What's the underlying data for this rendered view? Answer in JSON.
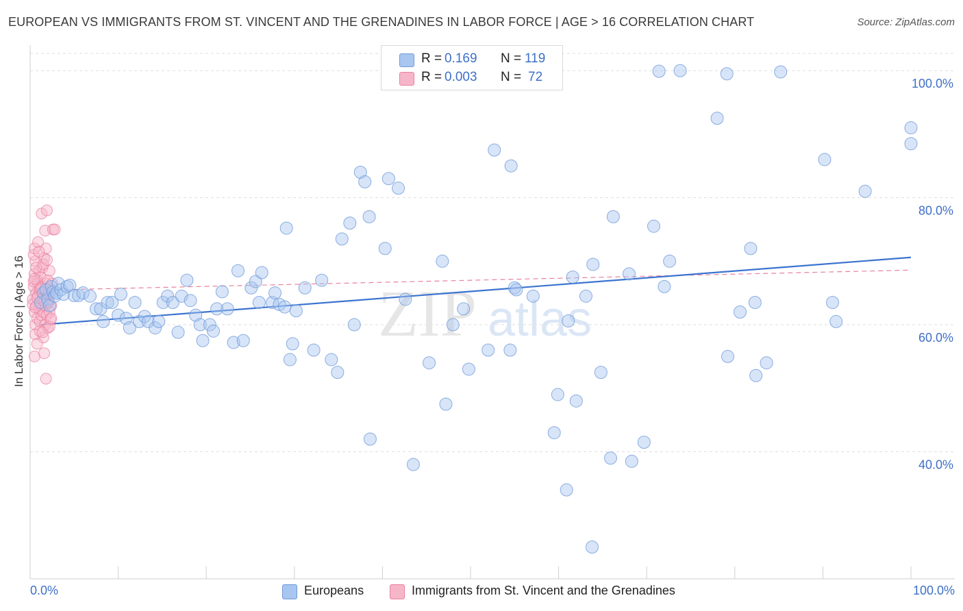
{
  "header": {
    "title": "EUROPEAN VS IMMIGRANTS FROM ST. VINCENT AND THE GRENADINES IN LABOR FORCE | AGE > 16 CORRELATION CHART",
    "source": "Source: ZipAtlas.com"
  },
  "legend_top": {
    "rows": [
      {
        "r_label": "R =",
        "r_value": "0.169",
        "n_label": "N =",
        "n_value": "119"
      },
      {
        "r_label": "R =",
        "r_value": "0.003",
        "n_label": "N =",
        "n_value": "72"
      }
    ]
  },
  "legend_bottom": {
    "items": [
      {
        "label": "Europeans"
      },
      {
        "label": "Immigrants from St. Vincent and the Grenadines"
      }
    ]
  },
  "watermark": {
    "zip": "ZIP",
    "atlas": "atlas"
  },
  "colors": {
    "blue_fill": "#a9c6f0",
    "blue_stroke": "#6f9ad9",
    "blue_line": "#3b73cf",
    "pink_fill": "#f6b6c9",
    "pink_stroke": "#e9809f",
    "pink_line": "#e8809c",
    "tick_text": "#3d6fc7",
    "grid": "#dddddd"
  },
  "chart_data": {
    "type": "scatter",
    "title": "EUROPEAN VS IMMIGRANTS FROM ST. VINCENT AND THE GRENADINES IN LABOR FORCE | AGE > 16 CORRELATION CHART",
    "xlabel": "",
    "ylabel": "In Labor Force | Age > 16",
    "xlim": [
      0,
      100
    ],
    "ylim": [
      20,
      104
    ],
    "x_tick_labels": [
      "0.0%",
      "100.0%"
    ],
    "y_ticks": [
      40,
      60,
      80,
      100
    ],
    "y_tick_labels": [
      "40.0%",
      "60.0%",
      "80.0%",
      "100.0%"
    ],
    "grid": true,
    "legend_position": "top-center",
    "series": [
      {
        "name": "Europeans",
        "R": 0.169,
        "N": 119,
        "trend": {
          "x": [
            1.2,
            100
          ],
          "y": [
            60.0,
            70.6
          ]
        },
        "points": [
          [
            1.2,
            63.5
          ],
          [
            1.5,
            65
          ],
          [
            1.8,
            65.5
          ],
          [
            2,
            64
          ],
          [
            2.2,
            63
          ],
          [
            2.4,
            66
          ],
          [
            2.6,
            65.2
          ],
          [
            2.8,
            64.5
          ],
          [
            3,
            65
          ],
          [
            3.2,
            66.5
          ],
          [
            3.5,
            65.5
          ],
          [
            3.8,
            64.8
          ],
          [
            4.2,
            66
          ],
          [
            4.5,
            66.2
          ],
          [
            5,
            64.6
          ],
          [
            5.5,
            64.6
          ],
          [
            6,
            65
          ],
          [
            6.8,
            64.5
          ],
          [
            7.5,
            62.5
          ],
          [
            8,
            62.5
          ],
          [
            8.3,
            60.5
          ],
          [
            8.8,
            63.5
          ],
          [
            9.3,
            63.5
          ],
          [
            10,
            61.5
          ],
          [
            10.3,
            64.8
          ],
          [
            10.9,
            61
          ],
          [
            11.3,
            59.5
          ],
          [
            11.9,
            63.5
          ],
          [
            12.4,
            60.5
          ],
          [
            13,
            61.3
          ],
          [
            13.4,
            60.5
          ],
          [
            14.2,
            59.5
          ],
          [
            14.6,
            60.5
          ],
          [
            15.1,
            63.5
          ],
          [
            15.6,
            64.5
          ],
          [
            16.2,
            63.5
          ],
          [
            16.8,
            58.8
          ],
          [
            17.2,
            64.5
          ],
          [
            17.8,
            67
          ],
          [
            18.2,
            63.8
          ],
          [
            18.8,
            61.5
          ],
          [
            19.3,
            60
          ],
          [
            19.6,
            57.5
          ],
          [
            20.4,
            60
          ],
          [
            20.8,
            59
          ],
          [
            21.2,
            62.5
          ],
          [
            21.8,
            65.2
          ],
          [
            22.4,
            62.5
          ],
          [
            23.1,
            57.2
          ],
          [
            23.6,
            68.5
          ],
          [
            24.2,
            57.5
          ],
          [
            25.1,
            65.8
          ],
          [
            25.6,
            66.8
          ],
          [
            26,
            63.5
          ],
          [
            26.3,
            68.2
          ],
          [
            27.5,
            63.5
          ],
          [
            27.8,
            65
          ],
          [
            28.3,
            63.2
          ],
          [
            28.9,
            62.8
          ],
          [
            29.1,
            75.2
          ],
          [
            29.5,
            54.5
          ],
          [
            29.8,
            57
          ],
          [
            30.2,
            62.2
          ],
          [
            31.2,
            65.8
          ],
          [
            32.2,
            56
          ],
          [
            33.1,
            67
          ],
          [
            34.2,
            54.5
          ],
          [
            34.9,
            52.5
          ],
          [
            35.4,
            73.5
          ],
          [
            36.3,
            76
          ],
          [
            36.8,
            60
          ],
          [
            37.5,
            84
          ],
          [
            38,
            82.5
          ],
          [
            38.5,
            77
          ],
          [
            38.6,
            42
          ],
          [
            40.3,
            72
          ],
          [
            40.7,
            83
          ],
          [
            41.8,
            81.5
          ],
          [
            42.6,
            64
          ],
          [
            43.5,
            38
          ],
          [
            45.3,
            54
          ],
          [
            47.2,
            47.5
          ],
          [
            46.8,
            70
          ],
          [
            48,
            60
          ],
          [
            49.2,
            62.5
          ],
          [
            49.8,
            53
          ],
          [
            52,
            56
          ],
          [
            52.7,
            87.5
          ],
          [
            54.5,
            56
          ],
          [
            54.6,
            85
          ],
          [
            55,
            65.8
          ],
          [
            55.2,
            65.5
          ],
          [
            57.1,
            64.5
          ],
          [
            59.5,
            43
          ],
          [
            59.9,
            49
          ],
          [
            60.9,
            34
          ],
          [
            61.1,
            60.6
          ],
          [
            61.6,
            67.5
          ],
          [
            62,
            48
          ],
          [
            63.1,
            64.5
          ],
          [
            63.9,
            69.5
          ],
          [
            64.8,
            52.5
          ],
          [
            65.9,
            39
          ],
          [
            66.2,
            77
          ],
          [
            68.3,
            38.5
          ],
          [
            68,
            68
          ],
          [
            69.7,
            41.5
          ],
          [
            70.8,
            75.5
          ],
          [
            72,
            66
          ],
          [
            72.6,
            70
          ],
          [
            73.8,
            100
          ],
          [
            78,
            92.5
          ],
          [
            79.1,
            99.5
          ],
          [
            80.6,
            62
          ],
          [
            81.8,
            72
          ],
          [
            82.3,
            63.5
          ],
          [
            82.4,
            52
          ],
          [
            83.6,
            54
          ],
          [
            91.5,
            60.5
          ],
          [
            90.2,
            86
          ],
          [
            100,
            91
          ],
          [
            94.8,
            81
          ],
          [
            91.1,
            63.5
          ],
          [
            79.2,
            55
          ],
          [
            100,
            88.5
          ],
          [
            71.4,
            99.9
          ],
          [
            85.2,
            99.8
          ],
          [
            63.8,
            25
          ]
        ]
      },
      {
        "name": "Immigrants from St. Vincent and the Grenadines",
        "R": 0.003,
        "N": 72,
        "trend": {
          "x": [
            0.2,
            100
          ],
          "y": [
            65.4,
            68.6
          ]
        },
        "points": [
          [
            0.3,
            64
          ],
          [
            0.4,
            66
          ],
          [
            0.5,
            62
          ],
          [
            0.5,
            68
          ],
          [
            0.6,
            70
          ],
          [
            0.6,
            60
          ],
          [
            0.7,
            65
          ],
          [
            0.7,
            63
          ],
          [
            0.8,
            67
          ],
          [
            0.8,
            61
          ],
          [
            0.9,
            64.5
          ],
          [
            0.9,
            66.5
          ],
          [
            1,
            62.5
          ],
          [
            1,
            68.5
          ],
          [
            1.1,
            60.5
          ],
          [
            1.1,
            65.5
          ],
          [
            1.2,
            63
          ],
          [
            1.2,
            67.5
          ],
          [
            1.3,
            61.5
          ],
          [
            1.3,
            66
          ],
          [
            1.4,
            64
          ],
          [
            1.4,
            69
          ],
          [
            1.5,
            62
          ],
          [
            1.5,
            58
          ],
          [
            1.6,
            65
          ],
          [
            1.6,
            70.5
          ],
          [
            1.7,
            63
          ],
          [
            1.7,
            60
          ],
          [
            1.8,
            66.5
          ],
          [
            1.8,
            72
          ],
          [
            1.9,
            61.5
          ],
          [
            1.9,
            64.5
          ],
          [
            2,
            59.5
          ],
          [
            2,
            67
          ],
          [
            2.1,
            63.5
          ],
          [
            2.1,
            65.8
          ],
          [
            2.2,
            62
          ],
          [
            2.2,
            68.5
          ],
          [
            2.3,
            60.8
          ],
          [
            2.3,
            65
          ],
          [
            2.4,
            63
          ],
          [
            2.5,
            66.5
          ],
          [
            0.4,
            71
          ],
          [
            0.5,
            72
          ],
          [
            0.9,
            73
          ],
          [
            1.3,
            77.5
          ],
          [
            1.7,
            74.8
          ],
          [
            1.9,
            78
          ],
          [
            2.6,
            75
          ],
          [
            2.8,
            75
          ],
          [
            0.5,
            55
          ],
          [
            1.6,
            55.5
          ],
          [
            1.8,
            51.5
          ],
          [
            0.6,
            58.5
          ],
          [
            0.8,
            57
          ],
          [
            1.1,
            59
          ],
          [
            1.4,
            58.8
          ],
          [
            2.2,
            59.7
          ],
          [
            0.3,
            63.2
          ],
          [
            0.4,
            66.8
          ],
          [
            0.7,
            69
          ],
          [
            1,
            71.5
          ],
          [
            1.5,
            69.5
          ],
          [
            2,
            63.5
          ],
          [
            2.4,
            61
          ],
          [
            0.6,
            62.7
          ],
          [
            0.8,
            64.2
          ],
          [
            1.2,
            65.7
          ],
          [
            1.6,
            63.8
          ],
          [
            2.1,
            64.9
          ],
          [
            0.5,
            67.2
          ],
          [
            1.9,
            70.2
          ]
        ]
      }
    ]
  }
}
